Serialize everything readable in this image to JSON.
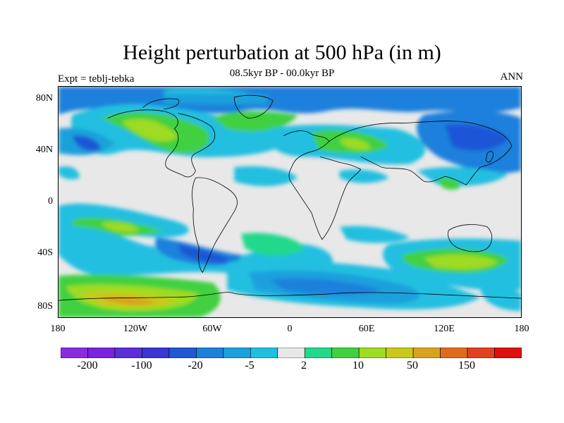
{
  "header": {
    "title": "Height perturbation at 500 hPa (in m)",
    "subtitle": "08.5kyr BP - 00.0kyr BP",
    "left_label": "Expt = teblj-tebka",
    "right_label": "ANN"
  },
  "map": {
    "projection": "cylindrical-equidistant",
    "lat_ticks": [
      "80N",
      "40N",
      "0",
      "40S",
      "80S"
    ],
    "lon_ticks": [
      "180",
      "120W",
      "60W",
      "0",
      "60E",
      "120E",
      "180"
    ]
  },
  "colorbar": {
    "colors": [
      "#8a2be2",
      "#7b22e0",
      "#5a2ed8",
      "#3a37d4",
      "#1f57d6",
      "#1c80dc",
      "#1aa0dc",
      "#20bfe0",
      "#e8e8e8",
      "#22d88a",
      "#40d040",
      "#9fdb20",
      "#c9c91b",
      "#d8a21e",
      "#e06a1e",
      "#e0421e",
      "#e00f0f"
    ],
    "labels": [
      "-200",
      "-100",
      "-20",
      "-5",
      "2",
      "10",
      "50",
      "150"
    ]
  },
  "colors": {
    "neutral": "#e8e8e8",
    "coast": "#000000"
  }
}
